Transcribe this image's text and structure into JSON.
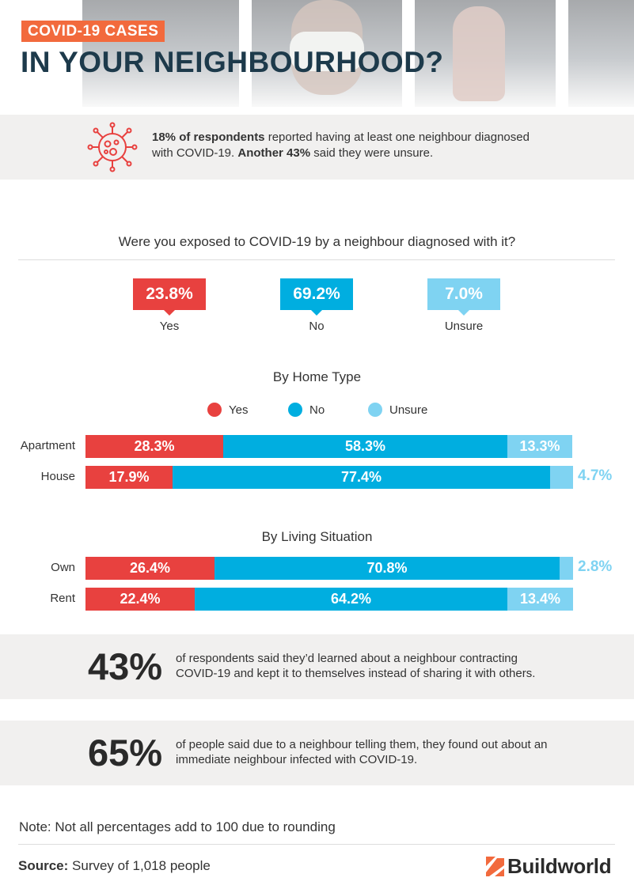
{
  "header": {
    "tag": "COVID-19 CASES",
    "title": "IN YOUR NEIGHBOURHOOD?"
  },
  "intro": {
    "bold1": "18% of respondents",
    "text1": " reported having at least one neighbour diagnosed with COVID-19. ",
    "bold2": "Another 43%",
    "text2": " said they were unsure."
  },
  "exposure": {
    "question": "Were you exposed to COVID-19 by a neighbour diagnosed with it?",
    "items": [
      {
        "label": "Yes",
        "value": "23.8%",
        "color": "#e8413f"
      },
      {
        "label": "No",
        "value": "69.2%",
        "color": "#00aee0"
      },
      {
        "label": "Unsure",
        "value": "7.0%",
        "color": "#7fd3f2"
      }
    ]
  },
  "colors": {
    "yes": "#e8413f",
    "no": "#00aee0",
    "unsure": "#7fd3f2",
    "accent": "#f26a3d",
    "title": "#1d3a4b"
  },
  "chart_data": [
    {
      "type": "bar",
      "stacked": true,
      "orientation": "horizontal",
      "title": "By Home Type",
      "legend": [
        "Yes",
        "No",
        "Unsure"
      ],
      "legend_position": "top",
      "categories": [
        "Apartment",
        "House"
      ],
      "series": [
        {
          "name": "Yes",
          "values": [
            28.3,
            17.9
          ],
          "labels": [
            "28.3%",
            "17.9%"
          ]
        },
        {
          "name": "No",
          "values": [
            58.3,
            77.4
          ],
          "labels": [
            "58.3%",
            "77.4%"
          ]
        },
        {
          "name": "Unsure",
          "values": [
            13.3,
            4.7
          ],
          "labels": [
            "13.3%",
            "4.7%"
          ]
        }
      ]
    },
    {
      "type": "bar",
      "stacked": true,
      "orientation": "horizontal",
      "title": "By Living Situation",
      "categories": [
        "Own",
        "Rent"
      ],
      "series": [
        {
          "name": "Yes",
          "values": [
            26.4,
            22.4
          ],
          "labels": [
            "26.4%",
            "22.4%"
          ]
        },
        {
          "name": "No",
          "values": [
            70.8,
            64.2
          ],
          "labels": [
            "70.8%",
            "64.2%"
          ]
        },
        {
          "name": "Unsure",
          "values": [
            2.8,
            13.4
          ],
          "labels": [
            "2.8%",
            "13.4%"
          ]
        }
      ]
    }
  ],
  "stats": [
    {
      "big": "43%",
      "text": "of respondents said they’d learned about a neighbour contracting COVID-19 and kept it to themselves instead of sharing it with others."
    },
    {
      "big": "65%",
      "text": "of people said due to a neighbour telling them, they found out about an immediate neighbour infected with COVID-19."
    }
  ],
  "footer": {
    "note": "Note: Not all percentages add to 100 due to rounding",
    "source_label": "Source:",
    "source_text": " Survey of 1,018 people",
    "brand": "Buildworld"
  }
}
